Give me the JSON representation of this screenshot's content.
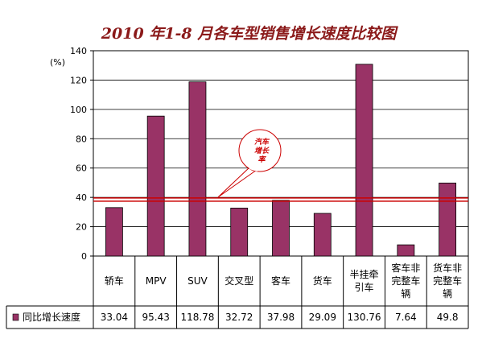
{
  "chart_data": {
    "type": "bar",
    "title": "2010 年1-8 月各车型销售增长速度比较图",
    "ylabel": "(%)",
    "ylim": [
      0,
      140
    ],
    "yticks": [
      0,
      20,
      40,
      60,
      80,
      100,
      120,
      140
    ],
    "grid": true,
    "categories": [
      [
        "轿车"
      ],
      [
        "MPV"
      ],
      [
        "SUV"
      ],
      [
        "交叉型"
      ],
      [
        "客车"
      ],
      [
        "货车"
      ],
      [
        "半挂牵",
        "引车"
      ],
      [
        "客车非",
        "完整车",
        "辆"
      ],
      [
        "货车非",
        "完整车",
        "辆"
      ]
    ],
    "series": [
      {
        "name": "同比增长速度",
        "color": "#993366",
        "values": [
          33.04,
          95.43,
          118.78,
          32.72,
          37.98,
          29.09,
          130.76,
          7.64,
          49.8
        ],
        "value_labels": [
          "33.04",
          "95.43",
          "118.78",
          "32.72",
          "37.98",
          "29.09",
          "130.76",
          "7.64",
          "49.8"
        ]
      }
    ],
    "reference_line": {
      "value": 38.5,
      "color": "#cc0000"
    },
    "annotation": {
      "lines": [
        "汽车",
        "增长",
        "率"
      ],
      "color": "#cc0000"
    },
    "legend_placement": "data-table-left"
  }
}
